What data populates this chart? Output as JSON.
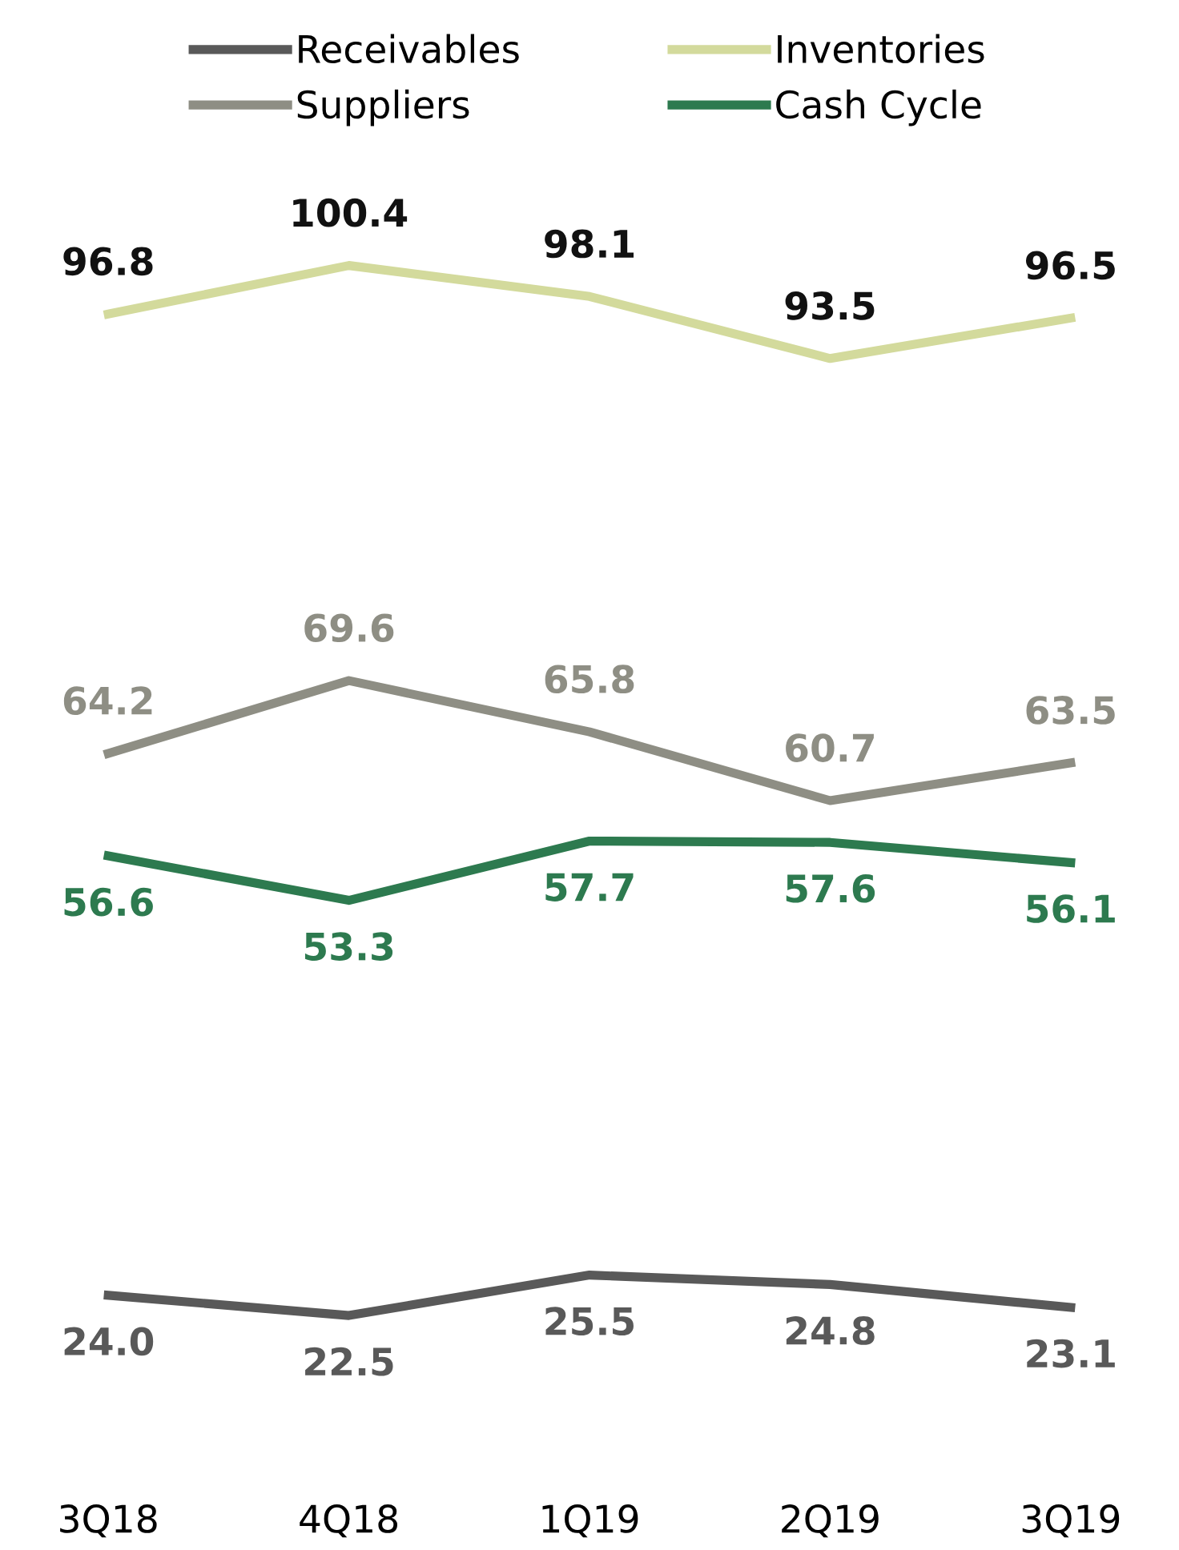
{
  "chart_data": {
    "type": "line",
    "categories": [
      "3Q18",
      "4Q18",
      "1Q19",
      "2Q19",
      "3Q19"
    ],
    "series": [
      {
        "name": "Receivables",
        "color": "#595959",
        "values": [
          24.0,
          22.5,
          25.5,
          24.8,
          23.1
        ],
        "value_labels": [
          "24.0",
          "22.5",
          "25.5",
          "24.8",
          "23.1"
        ]
      },
      {
        "name": "Inventories",
        "color": "#d3da9c",
        "values": [
          96.8,
          100.4,
          98.1,
          93.5,
          96.5
        ],
        "value_labels": [
          "96.8",
          "100.4",
          "98.1",
          "93.5",
          "96.5"
        ]
      },
      {
        "name": "Suppliers",
        "color": "#8e8e84",
        "values": [
          64.2,
          69.6,
          65.8,
          60.7,
          63.5
        ],
        "value_labels": [
          "64.2",
          "69.6",
          "65.8",
          "60.7",
          "63.5"
        ]
      },
      {
        "name": "Cash Cycle",
        "color": "#2d7a4f",
        "values": [
          56.6,
          53.3,
          57.7,
          57.6,
          56.1
        ],
        "value_labels": [
          "56.6",
          "53.3",
          "57.7",
          "57.6",
          "56.1"
        ]
      }
    ],
    "tick_labels": "x",
    "legend": "top",
    "marker": "none",
    "line_style": "solid"
  }
}
